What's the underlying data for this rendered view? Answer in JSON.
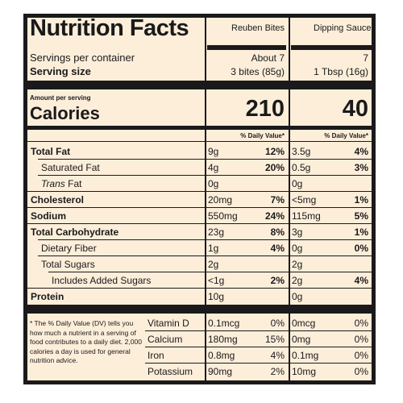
{
  "title": "Nutrition Facts",
  "columns": [
    "Reuben Bites",
    "Dipping Sauce"
  ],
  "servings_per_container": {
    "label": "Servings per container",
    "values": [
      "About 7",
      "7"
    ]
  },
  "serving_size": {
    "label": "Serving size",
    "values": [
      "3 bites (85g)",
      "1 Tbsp (16g)"
    ]
  },
  "amount_per_serving": "Amount per serving",
  "calories": {
    "label": "Calories",
    "values": [
      "210",
      "40"
    ]
  },
  "daily_value_header": "% Daily Value*",
  "nutrients": [
    {
      "label": "Total Fat",
      "bold": true,
      "c1": "9g",
      "d1": "12%",
      "c2": "3.5g",
      "d2": "4%"
    },
    {
      "label": "Saturated Fat",
      "c1": "4g",
      "d1": "20%",
      "c2": "0.5g",
      "d2": "3%"
    },
    {
      "label_italic": "Trans",
      "label_rest": " Fat",
      "c1": "0g",
      "d1": "",
      "c2": "0g",
      "d2": ""
    },
    {
      "label": "Cholesterol",
      "bold": true,
      "c1": "20mg",
      "d1": "7%",
      "c2": "<5mg",
      "d2": "1%"
    },
    {
      "label": "Sodium",
      "bold": true,
      "c1": "550mg",
      "d1": "24%",
      "c2": "115mg",
      "d2": "5%"
    },
    {
      "label": "Total Carbohydrate",
      "bold": true,
      "c1": "23g",
      "d1": "8%",
      "c2": "3g",
      "d2": "1%"
    },
    {
      "label": "Dietary Fiber",
      "c1": "1g",
      "d1": "4%",
      "c2": "0g",
      "d2": "0%"
    },
    {
      "label": "Total Sugars",
      "c1": "2g",
      "d1": "",
      "c2": "2g",
      "d2": ""
    },
    {
      "label": "Includes Added Sugars",
      "c1": "<1g",
      "d1": "2%",
      "c2": "2g",
      "d2": "4%"
    },
    {
      "label": "Protein",
      "bold": true,
      "c1": "10g",
      "d1": "",
      "c2": "0g",
      "d2": ""
    }
  ],
  "vitamins": [
    {
      "label": "Vitamin D",
      "c1": "0.1mcg",
      "d1": "0%",
      "c2": "0mcg",
      "d2": "0%"
    },
    {
      "label": "Calcium",
      "c1": "180mg",
      "d1": "15%",
      "c2": "0mg",
      "d2": "0%"
    },
    {
      "label": "Iron",
      "c1": "0.8mg",
      "d1": "4%",
      "c2": "0.1mg",
      "d2": "0%"
    },
    {
      "label": "Potassium",
      "c1": "90mg",
      "d1": "2%",
      "c2": "10mg",
      "d2": "0%"
    }
  ],
  "footnote": "* The % Daily Value (DV) tells you how much a nutrient in a serving of food contributes to a daily diet. 2,000 calories a day is used for general nutrition advice."
}
